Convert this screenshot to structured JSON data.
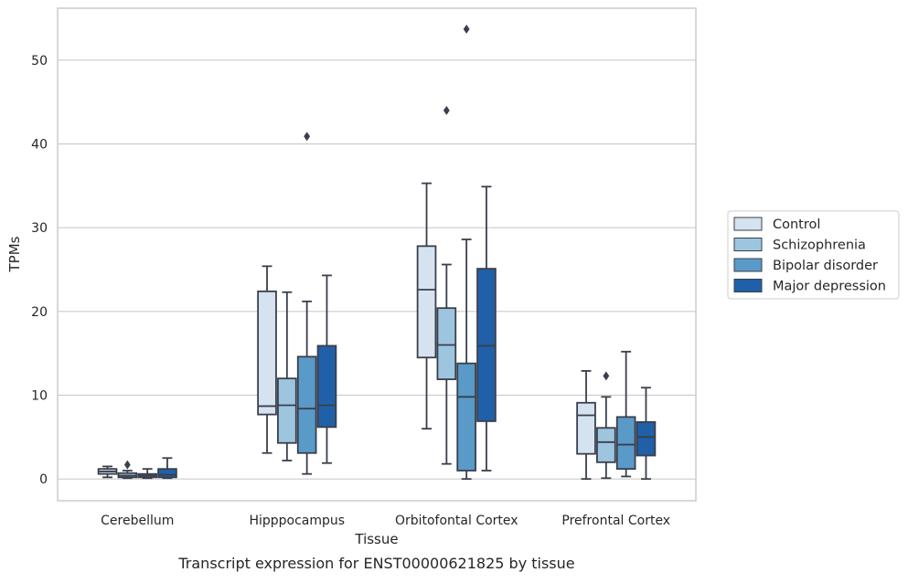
{
  "chart_data": {
    "type": "boxplot",
    "title": "",
    "caption": "Transcript expression for ENST00000621825 by tissue",
    "xlabel": "Tissue",
    "ylabel": "TPMs",
    "ylim": [
      -2.6,
      56.2
    ],
    "yticks": [
      0,
      10,
      20,
      30,
      40,
      50
    ],
    "grid": "horizontal",
    "legend_position": "right",
    "categories": [
      "Cerebellum",
      "Hipppocampus",
      "Orbitofontal Cortex",
      "Prefrontal Cortex"
    ],
    "series": [
      {
        "name": "Control",
        "color": "#d5e3f1",
        "boxes": [
          {
            "whisker_low": 0.2,
            "q1": 0.6,
            "median": 0.9,
            "q3": 1.2,
            "whisker_high": 1.5,
            "outliers": []
          },
          {
            "whisker_low": 3.1,
            "q1": 7.7,
            "median": 8.7,
            "q3": 22.4,
            "whisker_high": 25.4,
            "outliers": []
          },
          {
            "whisker_low": 6.0,
            "q1": 14.5,
            "median": 22.6,
            "q3": 27.8,
            "whisker_high": 35.3,
            "outliers": []
          },
          {
            "whisker_low": 0.0,
            "q1": 3.0,
            "median": 7.6,
            "q3": 9.1,
            "whisker_high": 12.9,
            "outliers": []
          }
        ]
      },
      {
        "name": "Schizophrenia",
        "color": "#9ec5df",
        "boxes": [
          {
            "whisker_low": 0.1,
            "q1": 0.2,
            "median": 0.4,
            "q3": 0.7,
            "whisker_high": 1.0,
            "outliers": [
              1.7
            ]
          },
          {
            "whisker_low": 2.2,
            "q1": 4.3,
            "median": 8.8,
            "q3": 12.0,
            "whisker_high": 22.3,
            "outliers": []
          },
          {
            "whisker_low": 1.8,
            "q1": 11.9,
            "median": 16.0,
            "q3": 20.4,
            "whisker_high": 25.6,
            "outliers": [
              44.0
            ]
          },
          {
            "whisker_low": 0.1,
            "q1": 2.0,
            "median": 4.4,
            "q3": 6.1,
            "whisker_high": 9.8,
            "outliers": [
              12.3
            ]
          }
        ]
      },
      {
        "name": "Bipolar disorder",
        "color": "#5a9ac8",
        "boxes": [
          {
            "whisker_low": 0.1,
            "q1": 0.2,
            "median": 0.4,
            "q3": 0.6,
            "whisker_high": 1.2,
            "outliers": []
          },
          {
            "whisker_low": 0.6,
            "q1": 3.1,
            "median": 8.4,
            "q3": 14.6,
            "whisker_high": 21.2,
            "outliers": [
              40.9
            ]
          },
          {
            "whisker_low": 0.0,
            "q1": 1.0,
            "median": 9.8,
            "q3": 13.8,
            "whisker_high": 28.6,
            "outliers": [
              53.7
            ]
          },
          {
            "whisker_low": 0.3,
            "q1": 1.2,
            "median": 4.1,
            "q3": 7.4,
            "whisker_high": 15.2,
            "outliers": []
          }
        ]
      },
      {
        "name": "Major depression",
        "color": "#2060a8",
        "boxes": [
          {
            "whisker_low": 0.1,
            "q1": 0.2,
            "median": 0.5,
            "q3": 1.2,
            "whisker_high": 2.5,
            "outliers": []
          },
          {
            "whisker_low": 1.9,
            "q1": 6.2,
            "median": 8.8,
            "q3": 15.9,
            "whisker_high": 24.3,
            "outliers": []
          },
          {
            "whisker_low": 1.0,
            "q1": 6.9,
            "median": 15.9,
            "q3": 25.1,
            "whisker_high": 34.9,
            "outliers": []
          },
          {
            "whisker_low": 0.0,
            "q1": 2.8,
            "median": 5.0,
            "q3": 6.8,
            "whisker_high": 10.9,
            "outliers": []
          }
        ]
      }
    ]
  }
}
